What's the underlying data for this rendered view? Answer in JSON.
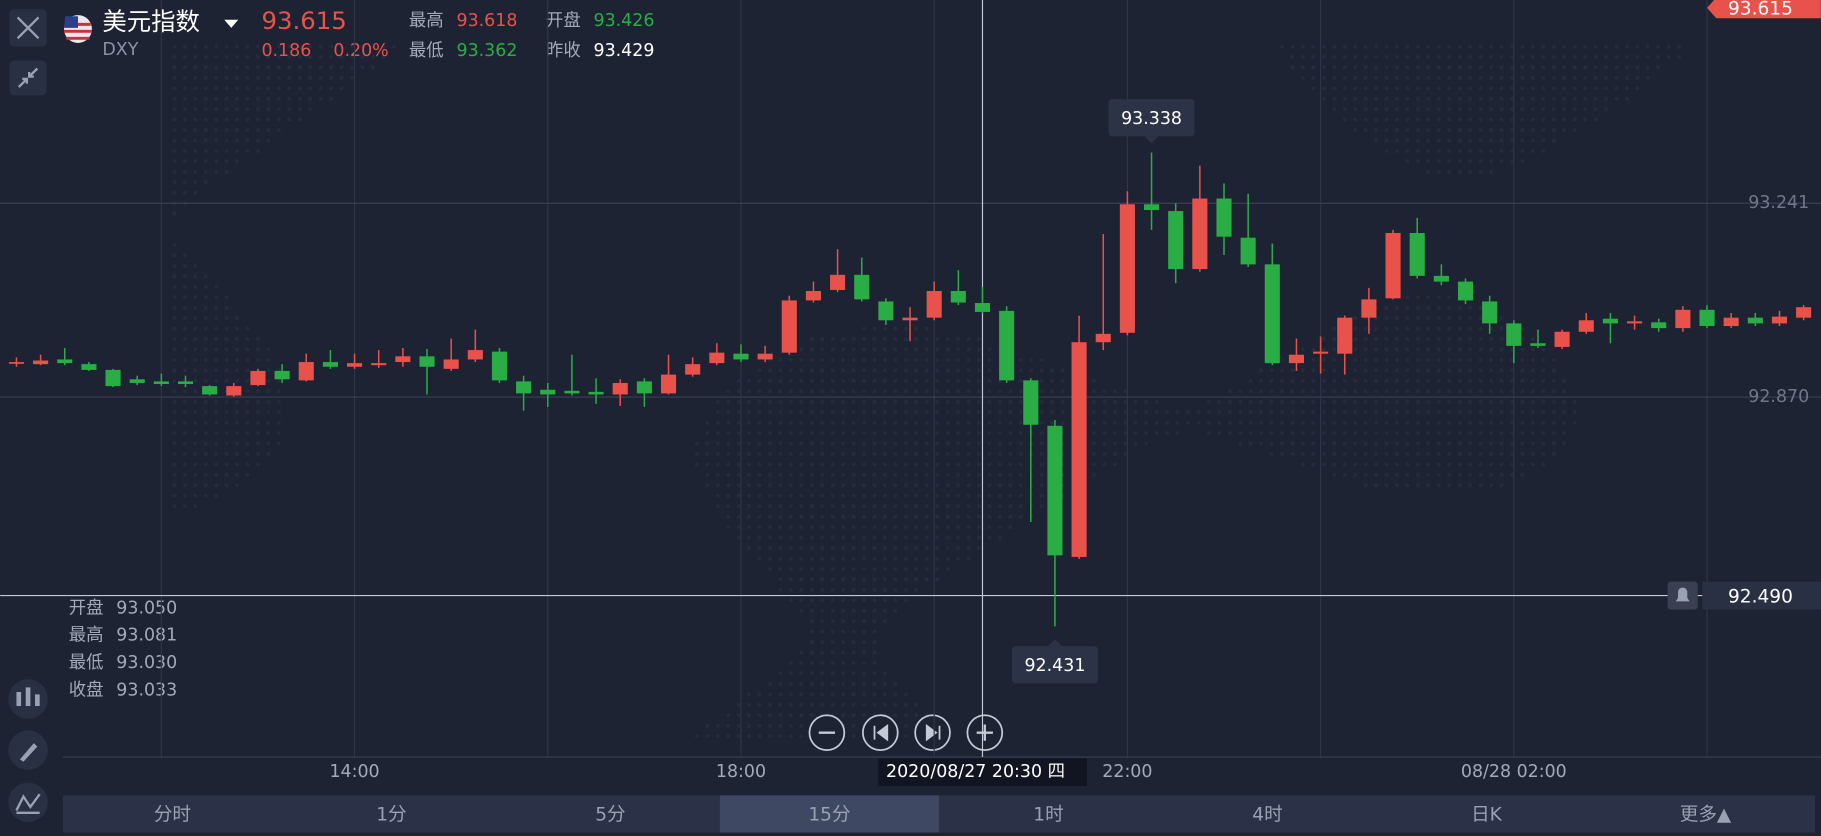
{
  "header": {
    "name": "美元指数",
    "code": "DXY",
    "price": "93.615",
    "change": "0.186",
    "change_pct": "0.20%",
    "stats": [
      {
        "label": "最高",
        "value": "93.618",
        "tone": "up"
      },
      {
        "label": "开盘",
        "value": "93.426",
        "tone": "down"
      },
      {
        "label": "最低",
        "value": "93.362",
        "tone": "down"
      },
      {
        "label": "昨收",
        "value": "93.429",
        "tone": "flat"
      }
    ]
  },
  "ohlc_panel": [
    {
      "label": "开盘",
      "value": "93.050"
    },
    {
      "label": "最高",
      "value": "93.081"
    },
    {
      "label": "最低",
      "value": "93.030"
    },
    {
      "label": "收盘",
      "value": "93.033"
    }
  ],
  "tabs": {
    "items": [
      "分时",
      "1分",
      "5分",
      "15分",
      "1时",
      "4时",
      "日K",
      "更多▲"
    ],
    "active": 3
  },
  "chart_data": {
    "type": "candlestick",
    "up_color": "#e8524a",
    "down_color": "#2aad45",
    "categories": [
      null,
      null,
      null,
      null,
      null,
      null,
      null,
      null,
      null,
      null,
      null,
      null,
      null,
      null,
      "14:00",
      null,
      null,
      null,
      null,
      null,
      null,
      null,
      null,
      null,
      null,
      null,
      null,
      null,
      null,
      null,
      "18:00",
      null,
      null,
      null,
      null,
      null,
      null,
      null,
      null,
      null,
      null,
      null,
      null,
      null,
      null,
      null,
      "22:00",
      null,
      null,
      null,
      null,
      null,
      null,
      null,
      null,
      null,
      null,
      null,
      null,
      null,
      null,
      null,
      "08/28 02:00",
      null,
      null,
      null,
      null,
      null,
      null,
      null,
      null,
      null,
      null,
      null,
      null
    ],
    "open": [
      92.935,
      92.933,
      92.942,
      92.933,
      92.922,
      92.904,
      92.9,
      92.9,
      92.891,
      92.873,
      92.893,
      92.92,
      92.902,
      92.937,
      92.928,
      92.931,
      92.937,
      92.948,
      92.924,
      92.942,
      92.957,
      92.9,
      92.884,
      92.882,
      92.88,
      92.875,
      92.9,
      92.877,
      92.913,
      92.935,
      92.953,
      92.942,
      92.955,
      93.055,
      93.075,
      93.104,
      93.053,
      93.017,
      93.022,
      93.073,
      93.05,
      93.035,
      92.902,
      92.815,
      92.564,
      92.975,
      92.993,
      93.239,
      93.226,
      93.115,
      93.25,
      93.175,
      93.124,
      92.935,
      92.953,
      92.953,
      93.022,
      93.059,
      93.184,
      93.102,
      93.091,
      93.053,
      93.011,
      92.973,
      92.966,
      92.995,
      93.02,
      93.011,
      93.013,
      93.002,
      93.037,
      93.006,
      93.022,
      93.011,
      93.022
    ],
    "high": [
      92.946,
      92.951,
      92.964,
      92.937,
      92.924,
      92.911,
      92.915,
      92.911,
      92.893,
      92.897,
      92.924,
      92.933,
      92.953,
      92.96,
      92.953,
      92.96,
      92.964,
      92.962,
      92.982,
      92.999,
      92.964,
      92.911,
      92.897,
      92.951,
      92.906,
      92.904,
      92.906,
      92.951,
      92.946,
      92.973,
      92.971,
      92.968,
      93.064,
      93.091,
      93.153,
      93.137,
      93.059,
      93.042,
      93.091,
      93.113,
      93.081,
      93.044,
      92.906,
      92.826,
      93.026,
      93.182,
      93.264,
      93.338,
      93.241,
      93.313,
      93.279,
      93.259,
      93.164,
      92.982,
      92.986,
      93.026,
      93.079,
      93.19,
      93.213,
      93.124,
      93.097,
      93.064,
      93.017,
      92.999,
      92.999,
      93.031,
      93.031,
      93.026,
      93.02,
      93.044,
      93.046,
      93.031,
      93.031,
      93.035,
      93.046
    ],
    "low": [
      92.928,
      92.931,
      92.931,
      92.92,
      92.889,
      92.893,
      92.891,
      92.889,
      92.873,
      92.871,
      92.891,
      92.897,
      92.9,
      92.924,
      92.924,
      92.926,
      92.928,
      92.875,
      92.92,
      92.937,
      92.897,
      92.844,
      92.851,
      92.873,
      92.857,
      92.853,
      92.851,
      92.875,
      92.909,
      92.931,
      92.937,
      92.937,
      92.951,
      93.051,
      93.071,
      93.053,
      93.008,
      92.977,
      93.017,
      93.046,
      93.03,
      92.897,
      92.631,
      92.431,
      92.56,
      92.96,
      92.988,
      93.19,
      93.088,
      93.11,
      93.142,
      93.119,
      92.931,
      92.92,
      92.915,
      92.913,
      92.991,
      93.057,
      93.097,
      93.084,
      93.048,
      92.991,
      92.935,
      92.964,
      92.962,
      92.991,
      92.973,
      92.999,
      92.995,
      92.995,
      93.002,
      93.002,
      93.006,
      93.006,
      93.017
    ],
    "close": [
      92.937,
      92.94,
      92.935,
      92.922,
      92.891,
      92.897,
      92.895,
      92.895,
      92.875,
      92.891,
      92.92,
      92.904,
      92.937,
      92.928,
      92.935,
      92.935,
      92.948,
      92.928,
      92.942,
      92.96,
      92.902,
      92.877,
      92.875,
      92.877,
      92.875,
      92.897,
      92.877,
      92.913,
      92.933,
      92.955,
      92.942,
      92.953,
      93.055,
      93.073,
      93.104,
      93.057,
      93.017,
      93.022,
      93.073,
      93.051,
      93.033,
      92.902,
      92.817,
      92.567,
      92.975,
      92.991,
      93.239,
      93.228,
      93.115,
      93.25,
      93.177,
      93.124,
      92.935,
      92.951,
      92.957,
      93.022,
      93.057,
      93.184,
      93.102,
      93.091,
      93.055,
      93.011,
      92.968,
      92.968,
      92.995,
      93.017,
      93.011,
      93.015,
      93.002,
      93.037,
      93.006,
      93.022,
      93.011,
      93.024,
      93.042
    ],
    "ylim": [
      92.181,
      93.63
    ],
    "yticks": [
      93.241,
      {
        "value": 92.87,
        "label": "92.870"
      }
    ],
    "last_price": 93.615,
    "alert_line": {
      "value": 92.49,
      "label": "92.490"
    },
    "crosshair": {
      "index": 40,
      "label": "2020/08/27 20:30 四"
    },
    "annotations": [
      {
        "index": 47,
        "field": "high"
      },
      {
        "index": 43,
        "field": "low"
      }
    ]
  }
}
